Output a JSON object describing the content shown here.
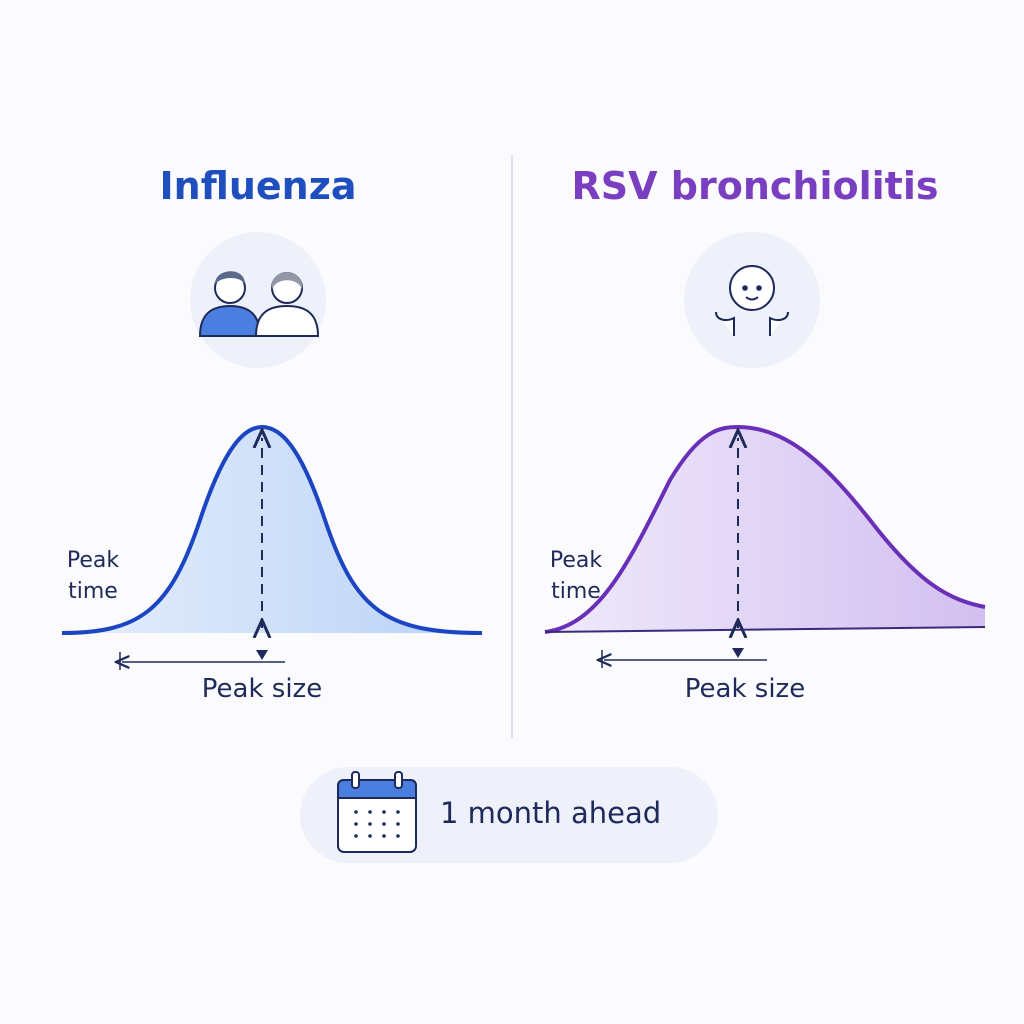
{
  "left": {
    "title": "Influenza",
    "peak_time": "Peak time",
    "peak_size": "Peak size"
  },
  "right": {
    "title": "RSV bronchiolitis",
    "peak_time": "Peak time",
    "peak_size": "Peak size"
  },
  "footer": {
    "label": "1 month ahead"
  }
}
